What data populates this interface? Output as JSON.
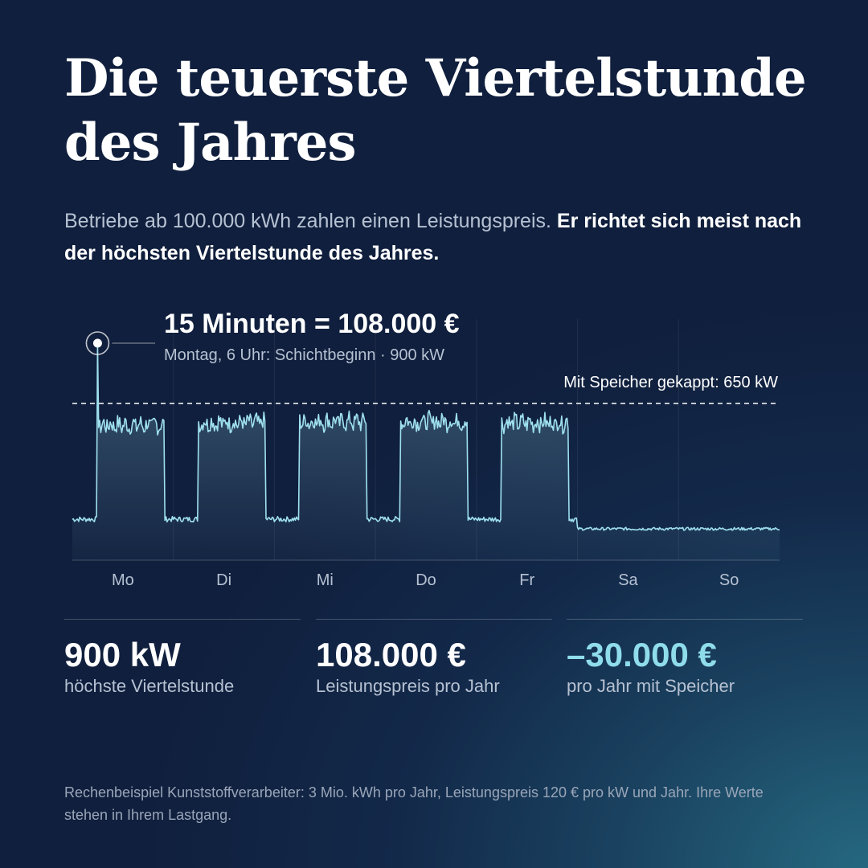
{
  "title": "Die teuerste Viertelstunde des Jahres",
  "subtitle": {
    "normal": "Betriebe ab 100.000 kWh zahlen einen Leistungspreis.",
    "bold": "Er richtet sich meist nach der höchsten Viertelstunde des Jahres."
  },
  "callout": {
    "title": "15 Minuten = 108.000 €",
    "subtitle": "Montag, 6 Uhr: Schichtbeginn · 900 kW"
  },
  "cap_label": "Mit Speicher gekappt: 650 kW",
  "chart_data": {
    "type": "line",
    "xlabel": "",
    "ylabel": "",
    "categories": [
      "Mo",
      "Di",
      "Mi",
      "Do",
      "Fr",
      "Sa",
      "So"
    ],
    "unit": "kW",
    "ylim": [
      0,
      1000
    ],
    "peak": {
      "day": "Mo",
      "hour": 6,
      "value": 900
    },
    "cap": 650,
    "days": [
      {
        "day": "Mo",
        "base": 170,
        "work_start": 6,
        "work_end": 22,
        "work_level": 560
      },
      {
        "day": "Di",
        "base": 170,
        "work_start": 6,
        "work_end": 22,
        "work_level": 570
      },
      {
        "day": "Mi",
        "base": 170,
        "work_start": 6,
        "work_end": 22,
        "work_level": 575
      },
      {
        "day": "Do",
        "base": 170,
        "work_start": 6,
        "work_end": 22,
        "work_level": 575
      },
      {
        "day": "Fr",
        "base": 170,
        "work_start": 6,
        "work_end": 22,
        "work_level": 570
      },
      {
        "day": "Sa",
        "base": 130,
        "work_start": null,
        "work_end": null,
        "work_level": null
      },
      {
        "day": "So",
        "base": 130,
        "work_start": null,
        "work_end": null,
        "work_level": null
      }
    ],
    "colors": {
      "line": "#9fe0ee",
      "cap": "#ffffff",
      "accent": "#8fdcea"
    }
  },
  "stats": [
    {
      "value": "900 kW",
      "label": "höchste Viertelstunde",
      "accent": false
    },
    {
      "value": "108.000 €",
      "label": "Leistungspreis pro Jahr",
      "accent": false
    },
    {
      "value": "–30.000 €",
      "label": "pro Jahr mit Speicher",
      "accent": true
    }
  ],
  "footnote": "Rechenbeispiel Kunststoffverarbeiter: 3 Mio. kWh pro Jahr, Leistungspreis 120 € pro kW und Jahr. Ihre Werte stehen in Ihrem Lastgang."
}
